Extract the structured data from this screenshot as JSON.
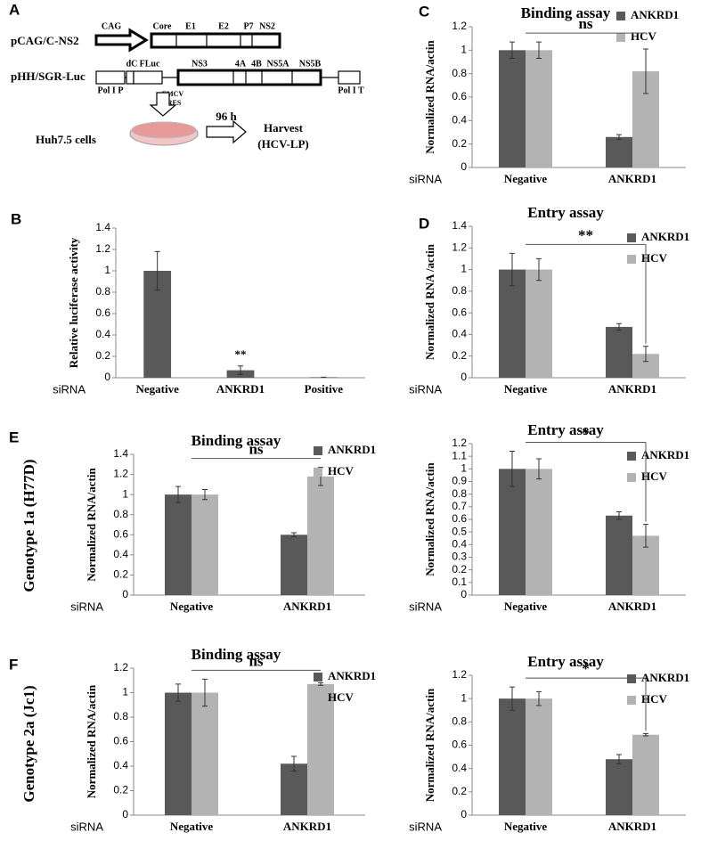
{
  "diagram": {
    "panel": "A",
    "plasmid1": "pCAG/C-NS2",
    "promoter": "CAG",
    "genes1": [
      "Core",
      "E1",
      "E2",
      "P7",
      "NS2"
    ],
    "plasmid2": "pHH/SGR-Luc",
    "genes2": [
      "dC",
      "FLuc",
      "NS3",
      "4A",
      "4B",
      "NS5A",
      "NS5B"
    ],
    "pol_i_p": "Pol I P",
    "emcv": "EMCV",
    "ires": "IRES",
    "pol_i_t": "Pol I T",
    "cells": "Huh7.5 cells",
    "time": "96 h",
    "harvest": "Harvest",
    "product": "(HCV-LP)"
  },
  "row_labels": [
    "Genotype 1a (H77D)",
    "Genotype 2a (Jc1)"
  ],
  "chart_data": [
    {
      "type": "bar",
      "panel": "B",
      "ylabel": "Relative luciferase activity",
      "xlabel": "siRNA",
      "categories": [
        "Negative",
        "ANKRD1",
        "Positive"
      ],
      "values": [
        1,
        0.07,
        0.005
      ],
      "errors": [
        0.18,
        0.04,
        0
      ],
      "color": "#595959",
      "annotation": {
        "text": "**",
        "bracket": false
      },
      "ylim": [
        0,
        1.4
      ],
      "yticks": [
        0,
        0.2,
        0.4,
        0.6,
        0.8,
        1,
        1.2,
        1.4
      ]
    },
    {
      "type": "bar",
      "panel": "C",
      "title": "Binding assay",
      "ylabel": "Normalized RNA/actin",
      "xlabel": "siRNA",
      "categories": [
        "Negative",
        "ANKRD1"
      ],
      "series": [
        {
          "name": "ANKRD1",
          "color": "#595959",
          "values": [
            1,
            0.26
          ],
          "errors": [
            0.07,
            0.02
          ]
        },
        {
          "name": "HCV",
          "color": "#b3b3b3",
          "values": [
            1,
            0.82
          ],
          "errors": [
            0.07,
            0.19
          ]
        }
      ],
      "annotation": {
        "text": "ns",
        "bracket": true,
        "drop": false
      },
      "ylim": [
        0,
        1.2
      ],
      "yticks": [
        0,
        0.2,
        0.4,
        0.6,
        0.8,
        1,
        1.2
      ]
    },
    {
      "type": "bar",
      "panel": "D",
      "title": "Entry assay",
      "ylabel": "Normalized RNA /actin",
      "xlabel": "siRNA",
      "categories": [
        "Negative",
        "ANKRD1"
      ],
      "series": [
        {
          "name": "ANKRD1",
          "color": "#595959",
          "values": [
            1,
            0.47
          ],
          "errors": [
            0.15,
            0.03
          ]
        },
        {
          "name": "HCV",
          "color": "#b3b3b3",
          "values": [
            1,
            0.22
          ],
          "errors": [
            0.1,
            0.07
          ]
        }
      ],
      "annotation": {
        "text": "**",
        "bracket": true,
        "drop": true
      },
      "ylim": [
        0,
        1.4
      ],
      "yticks": [
        0,
        0.2,
        0.4,
        0.6,
        0.8,
        1,
        1.2,
        1.4
      ]
    },
    {
      "type": "bar",
      "panel": "E",
      "title": "Binding assay",
      "ylabel": "Normalized RNA/actin",
      "xlabel": "siRNA",
      "categories": [
        "Negative",
        "ANKRD1"
      ],
      "series": [
        {
          "name": "ANKRD1",
          "color": "#595959",
          "values": [
            1,
            0.6
          ],
          "errors": [
            0.08,
            0.02
          ]
        },
        {
          "name": "HCV",
          "color": "#b3b3b3",
          "values": [
            1,
            1.18
          ],
          "errors": [
            0.05,
            0.09
          ]
        }
      ],
      "annotation": {
        "text": "ns",
        "bracket": true,
        "drop": false
      },
      "ylim": [
        0,
        1.4
      ],
      "yticks": [
        0,
        0.2,
        0.4,
        0.6,
        0.8,
        1,
        1.2,
        1.4
      ]
    },
    {
      "type": "bar",
      "title": "Entry assay",
      "ylabel": "Normalized RNA/actin",
      "xlabel": "siRNA",
      "categories": [
        "Negative",
        "ANKRD1"
      ],
      "series": [
        {
          "name": "ANKRD1",
          "color": "#595959",
          "values": [
            1,
            0.63
          ],
          "errors": [
            0.14,
            0.03
          ]
        },
        {
          "name": "HCV",
          "color": "#b3b3b3",
          "values": [
            1,
            0.47
          ],
          "errors": [
            0.08,
            0.09
          ]
        }
      ],
      "annotation": {
        "text": "*",
        "bracket": true,
        "drop": true
      },
      "ylim": [
        0,
        1.2
      ],
      "yticks": [
        0,
        0.1,
        0.2,
        0.3,
        0.4,
        0.5,
        0.6,
        0.7,
        0.8,
        0.9,
        1,
        1.1,
        1.2
      ]
    },
    {
      "type": "bar",
      "panel": "F",
      "title": "Binding assay",
      "ylabel": "Normalized RNA/actin",
      "xlabel": "siRNA",
      "categories": [
        "Negative",
        "ANKRD1"
      ],
      "series": [
        {
          "name": "ANKRD1",
          "color": "#595959",
          "values": [
            1,
            0.42
          ],
          "errors": [
            0.07,
            0.06
          ]
        },
        {
          "name": "HCV",
          "color": "#b3b3b3",
          "values": [
            1,
            1.07
          ],
          "errors": [
            0.11,
            0.01
          ]
        }
      ],
      "annotation": {
        "text": "ns",
        "bracket": true,
        "drop": false
      },
      "ylim": [
        0,
        1.2
      ],
      "yticks": [
        0,
        0.2,
        0.4,
        0.6,
        0.8,
        1,
        1.2
      ]
    },
    {
      "type": "bar",
      "title": "Entry assay",
      "ylabel": "Normalized RNA/actin",
      "xlabel": "siRNA",
      "categories": [
        "Negative",
        "ANKRD1"
      ],
      "series": [
        {
          "name": "ANKRD1",
          "color": "#595959",
          "values": [
            1,
            0.48
          ],
          "errors": [
            0.1,
            0.04
          ]
        },
        {
          "name": "HCV",
          "color": "#b3b3b3",
          "values": [
            1,
            0.69
          ],
          "errors": [
            0.06,
            0.01
          ]
        }
      ],
      "annotation": {
        "text": "*",
        "bracket": true,
        "drop": true
      },
      "ylim": [
        0,
        1.2
      ],
      "yticks": [
        0,
        0.2,
        0.4,
        0.6,
        0.8,
        1,
        1.2
      ]
    }
  ]
}
